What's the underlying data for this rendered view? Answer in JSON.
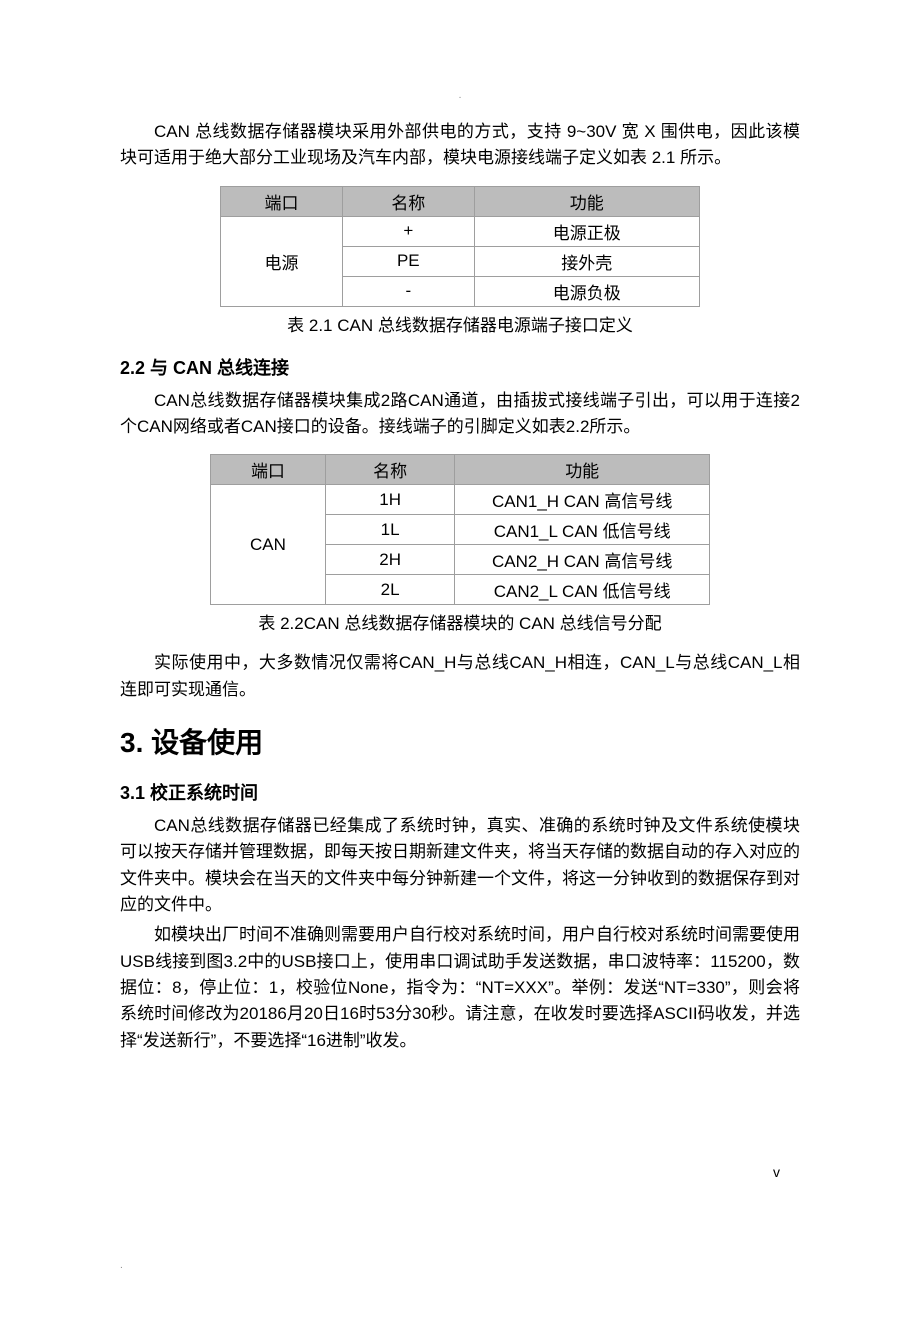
{
  "intro": {
    "p1": "CAN 总线数据存储器模块采用外部供电的方式，支持 9~30V 宽 X 围供电，因此该模块可适用于绝大部分工业现场及汽车内部，模块电源接线端子定义如表 2.1 所示。"
  },
  "table1": {
    "headers": {
      "c1": "端口",
      "c2": "名称",
      "c3": "功能"
    },
    "port": "电源",
    "rows": [
      {
        "name": "+",
        "func": "电源正极"
      },
      {
        "name": "PE",
        "func": "接外壳"
      },
      {
        "name": "-",
        "func": "电源负极"
      }
    ],
    "caption": "表 2.1 CAN 总线数据存储器电源端子接口定义"
  },
  "sec22": {
    "title": "2.2  与 CAN 总线连接",
    "p1": "CAN总线数据存储器模块集成2路CAN通道，由插拔式接线端子引出，可以用于连接2个CAN网络或者CAN接口的设备。接线端子的引脚定义如表2.2所示。"
  },
  "table2": {
    "headers": {
      "c1": "端口",
      "c2": "名称",
      "c3": "功能"
    },
    "port": "CAN",
    "rows": [
      {
        "name": "1H",
        "func": "CAN1_H   CAN 高信号线"
      },
      {
        "name": "1L",
        "func": "CAN1_L   CAN 低信号线"
      },
      {
        "name": "2H",
        "func": "CAN2_H   CAN 高信号线"
      },
      {
        "name": "2L",
        "func": "CAN2_L   CAN 低信号线"
      }
    ],
    "caption": "表 2.2CAN 总线数据存储器模块的 CAN 总线信号分配"
  },
  "sec22_after": {
    "p1": "实际使用中，大多数情况仅需将CAN_H与总线CAN_H相连，CAN_L与总线CAN_L相连即可实现通信。"
  },
  "chap3": {
    "title": "3.  设备使用"
  },
  "sec31": {
    "title": "3.1  校正系统时间",
    "p1": "CAN总线数据存储器已经集成了系统时钟，真实、准确的系统时钟及文件系统使模块可以按天存储并管理数据，即每天按日期新建文件夹，将当天存储的数据自动的存入对应的文件夹中。模块会在当天的文件夹中每分钟新建一个文件，将这一分钟收到的数据保存到对应的文件中。",
    "p2": "如模块出厂时间不准确则需要用户自行校对系统时间，用户自行校对系统时间需要使用USB线接到图3.2中的USB接口上，使用串口调试助手发送数据，串口波特率：115200，数据位：8，停止位：1，校验位None，指令为：“NT=XXX”。举例：发送“NT=330”，则会将系统时间修改为20186月20日16时53分30秒。请注意，在收发时要选择ASCII码收发，并选择“发送新行”，不要选择“16进制”收发。"
  },
  "page_num": "v",
  "style": {
    "header_bg": "#bcbcbc",
    "border_color": "#9e9e9e",
    "body_fontsize": 17,
    "chapter_fontsize": 28,
    "section_fontsize": 18
  }
}
